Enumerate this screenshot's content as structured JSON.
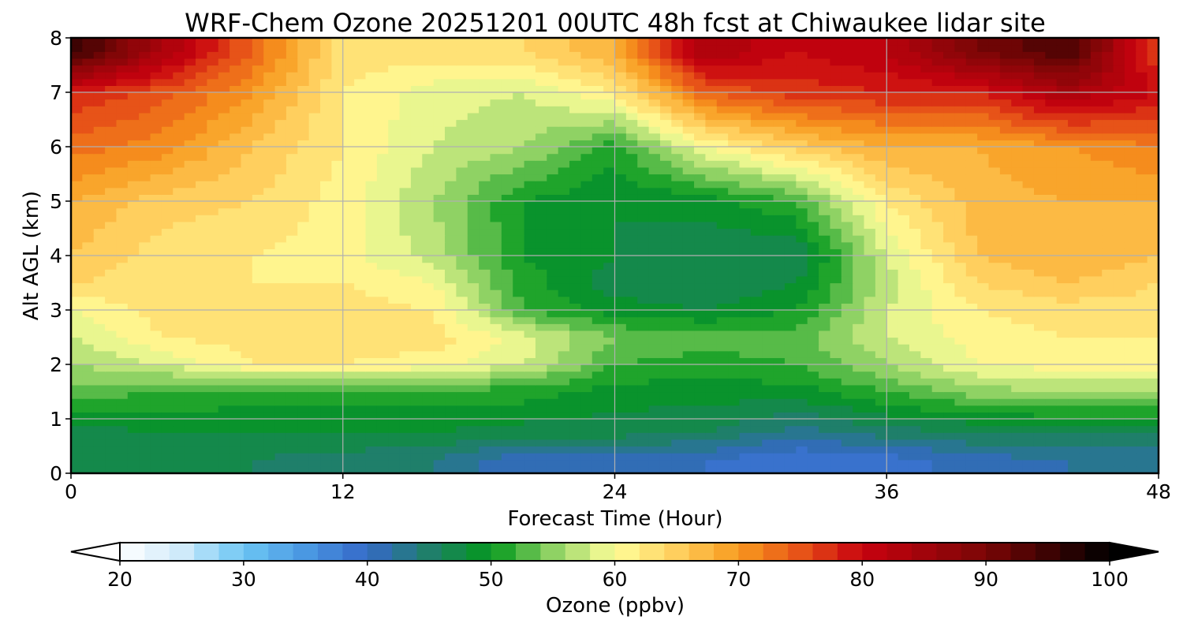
{
  "chart_data": {
    "type": "heatmap",
    "title": "WRF-Chem Ozone  20251201 00UTC 48h fcst at Chiwaukee lidar site",
    "xlabel": "Forecast Time (Hour)",
    "ylabel": "Alt AGL (km)",
    "xlim": [
      0,
      48
    ],
    "ylim": [
      0,
      8
    ],
    "xticks": [
      "0",
      "12",
      "24",
      "36",
      "48"
    ],
    "yticks": [
      "0",
      "1",
      "2",
      "3",
      "4",
      "5",
      "6",
      "7",
      "8"
    ],
    "grid": true,
    "x_hours": [
      0,
      4,
      8,
      12,
      16,
      20,
      24,
      28,
      32,
      36,
      40,
      44,
      48
    ],
    "y_km": [
      0.25,
      0.75,
      1.5,
      2.0,
      2.5,
      3.0,
      3.5,
      4.0,
      5.0,
      6.0,
      7.0,
      7.75
    ],
    "z_ppbv": [
      [
        46,
        46,
        46,
        45,
        44,
        40,
        40,
        40,
        38,
        39,
        41,
        42,
        42
      ],
      [
        47,
        48,
        48,
        48,
        48,
        47,
        47,
        46,
        43,
        45,
        46,
        46,
        46
      ],
      [
        53,
        52,
        51,
        51,
        51,
        51,
        49,
        49,
        49,
        52,
        55,
        56,
        56
      ],
      [
        56,
        58,
        62,
        62,
        61,
        58,
        52,
        51,
        52,
        56,
        60,
        61,
        61
      ],
      [
        58,
        62,
        63,
        63,
        63,
        59,
        54,
        53,
        53,
        58,
        61,
        62,
        62
      ],
      [
        60,
        63,
        63,
        63,
        62,
        52,
        49,
        48,
        50,
        58,
        62,
        63,
        63
      ],
      [
        64,
        63,
        62,
        62,
        60,
        51,
        47,
        46,
        48,
        57,
        64,
        66,
        64
      ],
      [
        66,
        63,
        62,
        61,
        57,
        50,
        48,
        46,
        46,
        58,
        66,
        68,
        66
      ],
      [
        68,
        65,
        64,
        61,
        56,
        50,
        48,
        49,
        52,
        62,
        67,
        68,
        68
      ],
      [
        73,
        71,
        66,
        62,
        58,
        56,
        51,
        60,
        65,
        68,
        68,
        70,
        72
      ],
      [
        78,
        75,
        70,
        62,
        59,
        58,
        62,
        74,
        77,
        78,
        78,
        84,
        80
      ],
      [
        96,
        84,
        74,
        63,
        63,
        64,
        68,
        84,
        80,
        82,
        90,
        94,
        76
      ]
    ],
    "colorbar": {
      "label": "Ozone  (ppbv)",
      "min": 20,
      "max": 100,
      "ticks": [
        "20",
        "30",
        "40",
        "50",
        "60",
        "70",
        "80",
        "90",
        "100"
      ],
      "extend": "both"
    },
    "colors": {
      "stops": [
        [
          20,
          "#ffffff"
        ],
        [
          25,
          "#cfeafa"
        ],
        [
          30,
          "#6cc6f4"
        ],
        [
          35,
          "#4a98e2"
        ],
        [
          40,
          "#3568c8"
        ],
        [
          45,
          "#1f7f6a"
        ],
        [
          50,
          "#03981d"
        ],
        [
          55,
          "#8fd264"
        ],
        [
          60,
          "#ffff9a"
        ],
        [
          65,
          "#ffcf5e"
        ],
        [
          70,
          "#f89a1e"
        ],
        [
          75,
          "#e75318"
        ],
        [
          80,
          "#c8020f"
        ],
        [
          90,
          "#7a0606"
        ],
        [
          100,
          "#000000"
        ]
      ]
    }
  }
}
